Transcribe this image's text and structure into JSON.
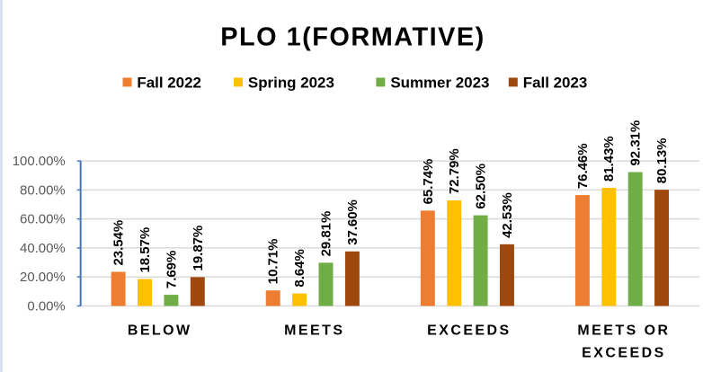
{
  "chart_data": {
    "type": "bar",
    "title": "PLO 1(FORMATIVE)",
    "xlabel": "",
    "ylabel": "",
    "ylim": [
      0,
      100
    ],
    "yticks": [
      "0.00%",
      "20.00%",
      "40.00%",
      "60.00%",
      "80.00%",
      "100.00%"
    ],
    "grid": true,
    "legend_position": "top",
    "categories": [
      "BELOW",
      "MEETS",
      "EXCEEDS",
      "MEETS OR EXCEEDS"
    ],
    "series": [
      {
        "name": "Fall 2022",
        "color": "#ED7D31",
        "values": [
          23.54,
          10.71,
          65.74,
          76.46
        ],
        "labels": [
          "23.54%",
          "10.71%",
          "65.74%",
          "76.46%"
        ]
      },
      {
        "name": "Spring 2023",
        "color": "#FFC000",
        "values": [
          18.57,
          8.64,
          72.79,
          81.43
        ],
        "labels": [
          "18.57%",
          "8.64%",
          "72.79%",
          "81.43%"
        ]
      },
      {
        "name": "Summer 2023",
        "color": "#70AD47",
        "values": [
          7.69,
          29.81,
          62.5,
          92.31
        ],
        "labels": [
          "7.69%",
          "29.81%",
          "62.50%",
          "92.31%"
        ]
      },
      {
        "name": "Fall 2023",
        "color": "#9E480E",
        "values": [
          19.87,
          37.6,
          42.53,
          80.13
        ],
        "labels": [
          "19.87%",
          "37.60%",
          "42.53%",
          "80.13%"
        ]
      }
    ]
  }
}
